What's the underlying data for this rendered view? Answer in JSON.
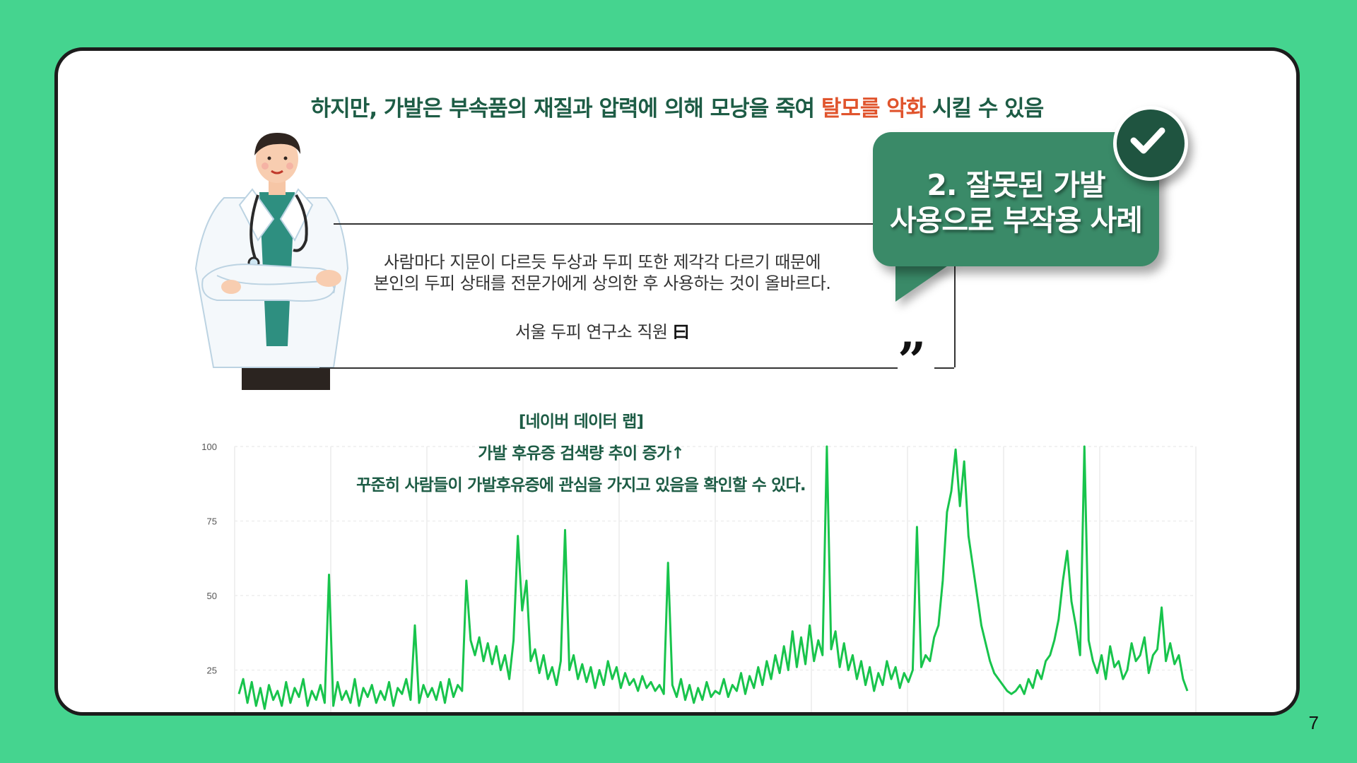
{
  "headline": {
    "prefix": "하지만, 가발은 부속품의 재질과 압력에 의해 모낭을 죽여 ",
    "highlight": "탈모를 악화",
    "suffix": " 시킬 수 있음"
  },
  "bubble": {
    "line1": "2. 잘못된 가발",
    "line2": "사용으로 부작용 사례",
    "badge_icon": "check-icon"
  },
  "quote": {
    "line1": "사람마다 지문이 다르듯 두상과 두피 또한 제각각 다르기 때문에",
    "line2": "본인의 두피 상태를 전문가에게 상의한 후 사용하는 것이 올바르다.",
    "author": "서울 두피 연구소 직원",
    "author_mark": "曰",
    "close_mark": "”"
  },
  "caption": {
    "line1": "[네이버 데이터 랩]",
    "line2": "가발 후유증 검색량 추이 증가↑",
    "line3": "꾸준히 사람들이 가발후유증에 관심을 가지고 있음을 확인할 수 있다."
  },
  "page_number": "7",
  "colors": {
    "background": "#45d48f",
    "headline": "#1d5c45",
    "highlight": "#e0542d",
    "bubble": "#3a8a68",
    "line": "#18c44c"
  },
  "chart_data": {
    "type": "line",
    "ylim": [
      0,
      100
    ],
    "yticks": [
      "25",
      "50",
      "75",
      "100"
    ],
    "grid": true,
    "legend": "none",
    "series": [
      {
        "values": [
          17,
          22,
          14,
          21,
          13,
          19,
          12,
          20,
          15,
          18,
          13,
          21,
          14,
          19,
          16,
          22,
          13,
          18,
          15,
          20,
          14,
          57,
          13,
          21,
          15,
          18,
          14,
          22,
          13,
          19,
          16,
          20,
          14,
          18,
          15,
          21,
          13,
          19,
          17,
          22,
          15,
          40,
          14,
          20,
          16,
          19,
          15,
          21,
          14,
          22,
          16,
          20,
          18,
          55,
          35,
          30,
          36,
          28,
          34,
          27,
          33,
          25,
          30,
          22,
          35,
          70,
          45,
          55,
          28,
          32,
          24,
          30,
          22,
          26,
          20,
          28,
          72,
          25,
          30,
          22,
          27,
          21,
          26,
          19,
          25,
          20,
          28,
          22,
          26,
          19,
          24,
          20,
          22,
          18,
          23,
          19,
          21,
          18,
          20,
          17,
          61,
          20,
          16,
          22,
          15,
          20,
          14,
          19,
          15,
          21,
          16,
          18,
          17,
          22,
          16,
          20,
          18,
          24,
          17,
          23,
          19,
          26,
          20,
          28,
          22,
          30,
          24,
          33,
          25,
          38,
          26,
          36,
          27,
          40,
          28,
          35,
          30,
          100,
          32,
          38,
          26,
          34,
          25,
          30,
          22,
          28,
          20,
          26,
          18,
          24,
          20,
          28,
          22,
          26,
          19,
          24,
          21,
          25,
          73,
          26,
          30,
          28,
          36,
          40,
          55,
          78,
          85,
          99,
          80,
          95,
          70,
          60,
          50,
          40,
          34,
          28,
          24,
          22,
          20,
          18,
          17,
          18,
          20,
          17,
          22,
          19,
          25,
          22,
          28,
          30,
          35,
          42,
          55,
          65,
          48,
          40,
          30,
          100,
          35,
          28,
          24,
          30,
          22,
          33,
          26,
          28,
          22,
          25,
          34,
          28,
          30,
          36,
          24,
          30,
          32,
          46,
          28,
          34,
          27,
          30,
          22,
          18
        ]
      }
    ]
  }
}
